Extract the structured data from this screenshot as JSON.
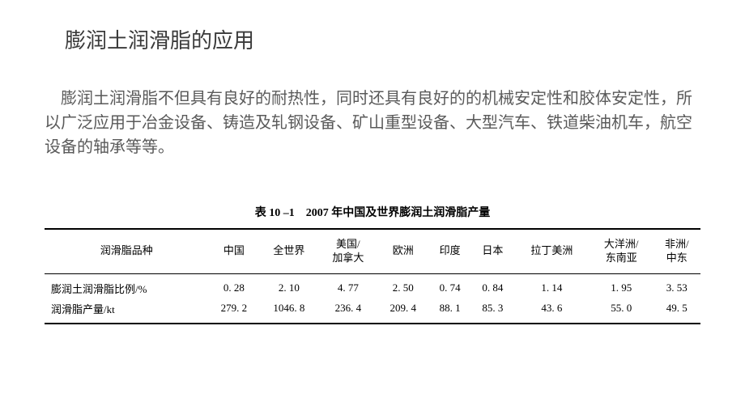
{
  "title": "膨润土润滑脂的应用",
  "body": "膨润土润滑脂不但具有良好的耐热性，同时还具有良好的的机械安定性和胶体安定性，所以广泛应用于冶金设备、铸造及轧钢设备、矿山重型设备、大型汽车、铁道柴油机车，航空设备的轴承等等。",
  "table": {
    "caption": "表 10 –1　2007 年中国及世界膨润土润滑脂产量",
    "columns": [
      "润滑脂品种",
      "中国",
      "全世界",
      "美国/\n加拿大",
      "欧洲",
      "印度",
      "日本",
      "拉丁美洲",
      "大洋洲/\n东南亚",
      "非洲/\n中东"
    ],
    "rows": [
      [
        "膨润土润滑脂比例/%",
        "0. 28",
        "2. 10",
        "4. 77",
        "2. 50",
        "0. 74",
        "0. 84",
        "1. 14",
        "1. 95",
        "3. 53"
      ],
      [
        "润滑脂产量/kt",
        "279. 2",
        "1046. 8",
        "236. 4",
        "209. 4",
        "88. 1",
        "85. 3",
        "43. 6",
        "55. 0",
        "49. 5"
      ]
    ]
  }
}
